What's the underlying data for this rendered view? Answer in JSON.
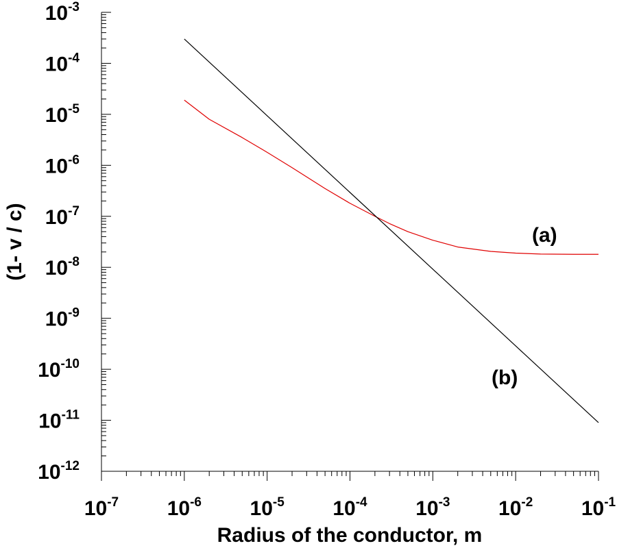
{
  "chart_data": {
    "type": "line",
    "xlabel": "Radius of the conductor, m",
    "ylabel": "(1- v / c)",
    "xscale": "log",
    "yscale": "log",
    "xlim": [
      1e-07,
      0.1
    ],
    "ylim": [
      1e-12,
      0.001
    ],
    "grid": false,
    "x_ticks": [
      {
        "base": "10",
        "exp": "-7"
      },
      {
        "base": "10",
        "exp": "-6"
      },
      {
        "base": "10",
        "exp": "-5"
      },
      {
        "base": "10",
        "exp": "-4"
      },
      {
        "base": "10",
        "exp": "-3"
      },
      {
        "base": "10",
        "exp": "-2"
      },
      {
        "base": "10",
        "exp": "-1"
      }
    ],
    "y_ticks": [
      {
        "base": "10",
        "exp": "-3"
      },
      {
        "base": "10",
        "exp": "-4"
      },
      {
        "base": "10",
        "exp": "-5"
      },
      {
        "base": "10",
        "exp": "-6"
      },
      {
        "base": "10",
        "exp": "-7"
      },
      {
        "base": "10",
        "exp": "-8"
      },
      {
        "base": "10",
        "exp": "-9"
      },
      {
        "base": "10",
        "exp": "-10"
      },
      {
        "base": "10",
        "exp": "-11"
      },
      {
        "base": "10",
        "exp": "-12"
      }
    ],
    "series": [
      {
        "name": "(a)",
        "color": "#e00000",
        "x": [
          1e-06,
          2e-06,
          5e-06,
          1e-05,
          2e-05,
          5e-05,
          0.0001,
          0.0002,
          0.0003,
          0.0005,
          0.001,
          0.002,
          0.005,
          0.01,
          0.02,
          0.05,
          0.1
        ],
        "y": [
          1.9e-05,
          8e-06,
          3.5e-06,
          1.8e-06,
          9e-07,
          3.5e-07,
          1.8e-07,
          1e-07,
          7.2e-08,
          5e-08,
          3.4e-08,
          2.5e-08,
          2.05e-08,
          1.9e-08,
          1.82e-08,
          1.8e-08,
          1.8e-08
        ]
      },
      {
        "name": "(b)",
        "color": "#000000",
        "x": [
          1e-06,
          0.1
        ],
        "y": [
          0.0003,
          9e-12
        ]
      }
    ]
  }
}
